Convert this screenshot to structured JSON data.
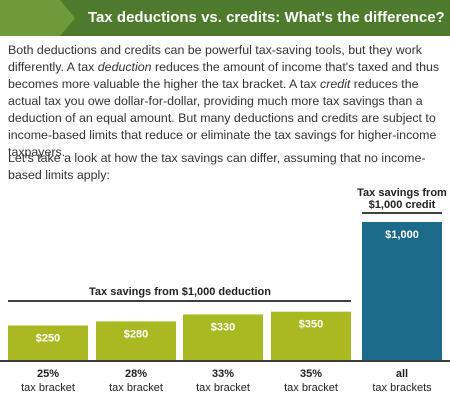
{
  "header": {
    "title": "Tax deductions vs. credits: What's the difference?"
  },
  "paragraphs": [
    [
      "Both deductions and credits can be powerful tax-saving tools, but they work differently. A tax ",
      "deduction",
      " reduces the amount of income that's taxed and thus becomes more valuable the higher the tax bracket. A tax ",
      "credit",
      " reduces the actual tax you owe dollar-for-dollar, providing much more tax savings than a deduction of an equal amount. But many deductions and credits are subject to income-based limits that reduce or eliminate the tax savings for higher-income taxpayers."
    ],
    [
      "Let's take a look at how the tax savings can differ, assuming that no income-based limits apply:"
    ]
  ],
  "chart_data": {
    "type": "bar",
    "categories": [
      [
        "25%",
        "tax bracket"
      ],
      [
        "28%",
        "tax bracket"
      ],
      [
        "33%",
        "tax bracket"
      ],
      [
        "35%",
        "tax bracket"
      ],
      [
        "all",
        "tax brackets"
      ]
    ],
    "values": [
      250,
      280,
      330,
      350,
      1000
    ],
    "value_labels": [
      "$250",
      "$280",
      "$330",
      "$350",
      "$1,000"
    ],
    "colors": [
      "#a9b922",
      "#a9b922",
      "#a9b922",
      "#a9b922",
      "#1c6a8c"
    ],
    "annotations": [
      [
        "Tax savings from $1,000 deduction"
      ],
      [
        "Tax savings from",
        "$1,000 credit"
      ]
    ]
  }
}
